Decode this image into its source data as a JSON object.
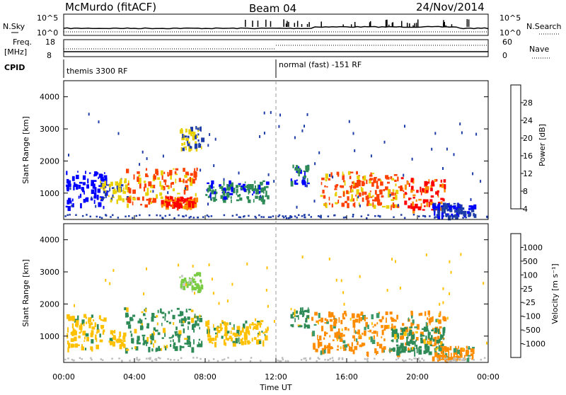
{
  "header": {
    "station": "McMurdo (fitACF)",
    "beam": "Beam 04",
    "date": "24/Nov/2014"
  },
  "strip": {
    "nsky_label": "N.Sky",
    "nsky_ticks": [
      "10^5",
      "10^0"
    ],
    "nsearch_label": "N.Search",
    "nsearch_ticks": [
      "10^5",
      "10^0"
    ],
    "freq_label_1": "Freq.",
    "freq_label_2": "[MHz]",
    "freq_ticks": [
      "18",
      "8"
    ],
    "nave_label": "Nave",
    "nave_ticks": [
      "60",
      "0"
    ],
    "cpid_label": "CPID",
    "cpid_segments": [
      "themis 3300 RF",
      "normal (fast) -151 RF"
    ]
  },
  "axes": {
    "ylabel": "Slant Range [km]",
    "yticks": [
      "4000",
      "3000",
      "2000",
      "1000"
    ],
    "xticks": [
      "00:00",
      "04:00",
      "08:00",
      "12:00",
      "16:00",
      "20:00",
      "00:00"
    ],
    "xlabel": "Time UT"
  },
  "colorbars": {
    "power": {
      "label": "Power [dB]",
      "ticks": [
        "28",
        "24",
        "20",
        "16",
        "12",
        "8",
        "4"
      ],
      "colors": [
        "#ff0000",
        "#ff4000",
        "#ff8c00",
        "#e8d000",
        "#2e8b57",
        "#1e3ca8",
        "#0000ff"
      ]
    },
    "velocity": {
      "label": "Velocity [m s⁻¹]",
      "ticks": [
        "1000",
        "500",
        "100",
        "25",
        "-25",
        "-100",
        "-500",
        "-1000"
      ],
      "colors": [
        "#1e3ca8",
        "#3c9a6a",
        "#2e8b57",
        "#7acc44",
        "#c8c8c8",
        "#ffc000",
        "#ff8c00",
        "#ff4000",
        "#ff0000"
      ]
    }
  },
  "chart_data": {
    "type": "heatmap",
    "title": "McMurdo (fitACF)",
    "xlabel": "Time UT",
    "ylabel": "Slant Range [km]",
    "xlim": [
      "00:00",
      "24:00"
    ],
    "ylim": [
      180,
      4500
    ],
    "panels": [
      {
        "name": "Power [dB]",
        "patches": [
          {
            "t0": 0.1,
            "t1": 2.4,
            "r0": 600,
            "r1": 1700,
            "level": 4
          },
          {
            "t0": 2.0,
            "t1": 3.6,
            "r0": 800,
            "r1": 1500,
            "level": 16
          },
          {
            "t0": 3.5,
            "t1": 7.5,
            "r0": 600,
            "r1": 1800,
            "level": 24
          },
          {
            "t0": 5.5,
            "t1": 7.5,
            "r0": 600,
            "r1": 900,
            "level": 28
          },
          {
            "t0": 6.5,
            "t1": 7.8,
            "r0": 2400,
            "r1": 3100,
            "level": 16
          },
          {
            "t0": 8.0,
            "t1": 11.5,
            "r0": 800,
            "r1": 1400,
            "level": 12
          },
          {
            "t0": 12.8,
            "t1": 13.8,
            "r0": 1300,
            "r1": 1900,
            "level": 12
          },
          {
            "t0": 14.5,
            "t1": 19.0,
            "r0": 600,
            "r1": 1700,
            "level": 24
          },
          {
            "t0": 19.0,
            "t1": 21.5,
            "r0": 500,
            "r1": 1500,
            "level": 28
          },
          {
            "t0": 20.8,
            "t1": 23.2,
            "r0": 300,
            "r1": 700,
            "level": 8
          }
        ]
      },
      {
        "name": "Velocity [m s-1]",
        "patches": [
          {
            "t0": 0.1,
            "t1": 2.3,
            "r0": 600,
            "r1": 1700,
            "level": -100
          },
          {
            "t0": 2.5,
            "t1": 3.4,
            "r0": 700,
            "r1": 1200,
            "level": -100
          },
          {
            "t0": 3.4,
            "t1": 7.8,
            "r0": 600,
            "r1": 1900,
            "level": 100
          },
          {
            "t0": 6.5,
            "t1": 7.8,
            "r0": 2400,
            "r1": 3100,
            "level": 25
          },
          {
            "t0": 8.0,
            "t1": 11.5,
            "r0": 800,
            "r1": 1500,
            "level": -100
          },
          {
            "t0": 12.8,
            "t1": 13.8,
            "r0": 1300,
            "r1": 1900,
            "level": 100
          },
          {
            "t0": 14.0,
            "t1": 21.5,
            "r0": 500,
            "r1": 1800,
            "level": -500
          },
          {
            "t0": 18.5,
            "t1": 21.5,
            "r0": 500,
            "r1": 1300,
            "level": 100
          },
          {
            "t0": 20.8,
            "t1": 23.2,
            "r0": 300,
            "r1": 700,
            "level": -500
          }
        ]
      }
    ]
  }
}
